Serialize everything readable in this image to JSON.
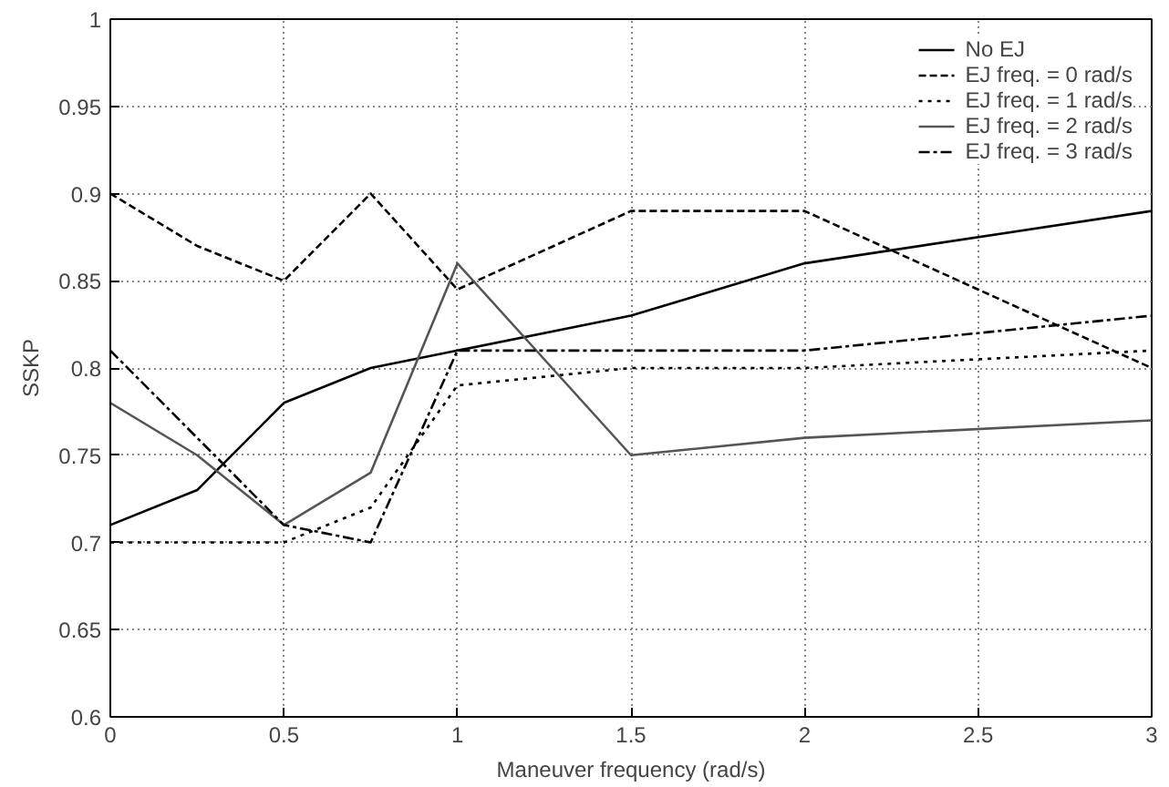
{
  "chart_data": {
    "type": "line",
    "xlabel": "Maneuver frequency (rad/s)",
    "ylabel": "SSKP",
    "x": [
      0,
      0.25,
      0.5,
      0.75,
      1,
      1.5,
      2,
      3
    ],
    "series": [
      {
        "name": "No EJ",
        "color": "#000000",
        "line_style": "solid",
        "values": [
          0.71,
          0.73,
          0.78,
          0.8,
          0.81,
          0.83,
          0.86,
          0.89
        ]
      },
      {
        "name": "EJ freq. = 0 rad/s",
        "color": "#000000",
        "line_style": "dashed",
        "values": [
          0.9,
          0.87,
          0.85,
          0.9,
          0.845,
          0.89,
          0.89,
          0.8
        ]
      },
      {
        "name": "EJ freq. = 1 rad/s",
        "color": "#000000",
        "line_style": "dotted",
        "values": [
          0.7,
          0.7,
          0.7,
          0.72,
          0.79,
          0.8,
          0.8,
          0.81
        ]
      },
      {
        "name": "EJ freq. = 2 rad/s",
        "color": "#555555",
        "line_style": "solid",
        "values": [
          0.78,
          0.75,
          0.71,
          0.74,
          0.86,
          0.75,
          0.76,
          0.77
        ]
      },
      {
        "name": "EJ freq. = 3 rad/s",
        "color": "#000000",
        "line_style": "dashdot",
        "values": [
          0.81,
          0.76,
          0.71,
          0.7,
          0.81,
          0.81,
          0.81,
          0.83
        ]
      }
    ],
    "xlim": [
      0,
      3
    ],
    "ylim": [
      0.6,
      1
    ],
    "xticks": [
      0,
      0.5,
      1,
      1.5,
      2,
      2.5,
      3
    ],
    "yticks": [
      0.6,
      0.65,
      0.7,
      0.75,
      0.8,
      0.85,
      0.9,
      0.95,
      1
    ],
    "grid": true,
    "legend": "top right",
    "marker": "none"
  }
}
